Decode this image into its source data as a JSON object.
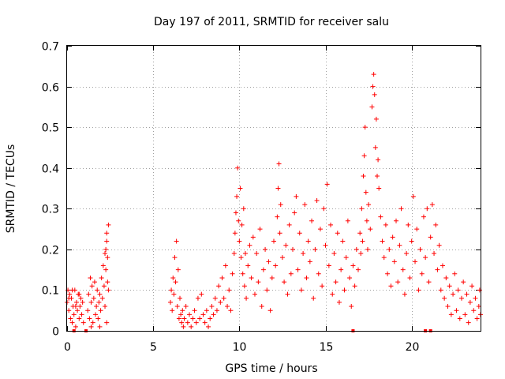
{
  "chart_data": {
    "type": "scatter",
    "title": "Day 197 of 2011, SRMTID for receiver salu",
    "xlabel": "GPS time / hours",
    "ylabel": "SRMTID / TECUs",
    "xlim": [
      0,
      24
    ],
    "ylim": [
      0,
      0.7
    ],
    "xticks": [
      0,
      5,
      10,
      15,
      20
    ],
    "xtick_labels": [
      "0",
      "5",
      "10",
      "15",
      "20"
    ],
    "yticks": [
      0,
      0.1,
      0.2,
      0.3,
      0.4,
      0.5,
      0.6,
      0.7
    ],
    "ytick_labels": [
      "0",
      "0.1",
      "0.2",
      "0.3",
      "0.4",
      "0.5",
      "0.6",
      "0.7"
    ],
    "grid": true,
    "marker": "plus",
    "marker_color": "#ff0000",
    "series": [
      {
        "name": "SRMTID",
        "points": [
          [
            0.0,
            0.07
          ],
          [
            0.05,
            0.1
          ],
          [
            0.1,
            0.05
          ],
          [
            0.15,
            0.09
          ],
          [
            0.2,
            0.03
          ],
          [
            0.25,
            0.08
          ],
          [
            0.3,
            0.02
          ],
          [
            0.35,
            0.06
          ],
          [
            0.4,
            0.04
          ],
          [
            0.45,
            0.1
          ],
          [
            0.5,
            0.01
          ],
          [
            0.55,
            0.07
          ],
          [
            0.6,
            0.05
          ],
          [
            0.65,
            0.09
          ],
          [
            0.7,
            0.03
          ],
          [
            0.75,
            0.06
          ],
          [
            0.8,
            0.08
          ],
          [
            0.85,
            0.04
          ],
          [
            0.9,
            0.07
          ],
          [
            0.95,
            0.02
          ],
          [
            0.1,
            0.08
          ],
          [
            0.3,
            0.1
          ],
          [
            0.5,
            0.06
          ],
          [
            0.7,
            0.09
          ],
          [
            1.2,
            0.05
          ],
          [
            1.25,
            0.09
          ],
          [
            1.3,
            0.03
          ],
          [
            1.35,
            0.13
          ],
          [
            1.4,
            0.07
          ],
          [
            1.45,
            0.11
          ],
          [
            1.5,
            0.02
          ],
          [
            1.55,
            0.08
          ],
          [
            1.6,
            0.12
          ],
          [
            1.65,
            0.04
          ],
          [
            1.7,
            0.06
          ],
          [
            1.75,
            0.1
          ],
          [
            1.8,
            0.03
          ],
          [
            1.85,
            0.07
          ],
          [
            1.9,
            0.09
          ],
          [
            1.95,
            0.05
          ],
          [
            2.0,
            0.13
          ],
          [
            2.05,
            0.08
          ],
          [
            2.1,
            0.16
          ],
          [
            2.15,
            0.11
          ],
          [
            2.2,
            0.19
          ],
          [
            2.25,
            0.15
          ],
          [
            2.3,
            0.22
          ],
          [
            2.35,
            0.18
          ],
          [
            2.4,
            0.26
          ],
          [
            2.3,
            0.24
          ],
          [
            2.25,
            0.2
          ],
          [
            2.35,
            0.12
          ],
          [
            2.4,
            0.1
          ],
          [
            2.2,
            0.06
          ],
          [
            1.4,
            0.01
          ],
          [
            1.9,
            0.01
          ],
          [
            2.3,
            0.02
          ],
          [
            6.0,
            0.07
          ],
          [
            6.05,
            0.1
          ],
          [
            6.1,
            0.05
          ],
          [
            6.15,
            0.13
          ],
          [
            6.2,
            0.09
          ],
          [
            6.25,
            0.18
          ],
          [
            6.3,
            0.12
          ],
          [
            6.35,
            0.22
          ],
          [
            6.4,
            0.06
          ],
          [
            6.45,
            0.15
          ],
          [
            6.5,
            0.03
          ],
          [
            6.55,
            0.08
          ],
          [
            6.6,
            0.04
          ],
          [
            6.65,
            0.02
          ],
          [
            6.7,
            0.05
          ],
          [
            6.75,
            0.01
          ],
          [
            6.8,
            0.03
          ],
          [
            6.9,
            0.06
          ],
          [
            7.0,
            0.02
          ],
          [
            7.1,
            0.04
          ],
          [
            7.2,
            0.01
          ],
          [
            7.3,
            0.03
          ],
          [
            7.4,
            0.05
          ],
          [
            7.5,
            0.02
          ],
          [
            7.6,
            0.08
          ],
          [
            7.7,
            0.03
          ],
          [
            7.8,
            0.09
          ],
          [
            7.9,
            0.04
          ],
          [
            8.0,
            0.02
          ],
          [
            8.1,
            0.05
          ],
          [
            8.2,
            0.01
          ],
          [
            8.3,
            0.03
          ],
          [
            8.4,
            0.06
          ],
          [
            8.5,
            0.04
          ],
          [
            8.6,
            0.08
          ],
          [
            8.7,
            0.05
          ],
          [
            8.8,
            0.11
          ],
          [
            8.9,
            0.07
          ],
          [
            9.0,
            0.13
          ],
          [
            9.1,
            0.08
          ],
          [
            9.2,
            0.16
          ],
          [
            9.3,
            0.06
          ],
          [
            9.4,
            0.1
          ],
          [
            9.5,
            0.05
          ],
          [
            9.6,
            0.14
          ],
          [
            9.7,
            0.19
          ],
          [
            9.75,
            0.24
          ],
          [
            9.8,
            0.29
          ],
          [
            9.85,
            0.33
          ],
          [
            9.9,
            0.4
          ],
          [
            9.95,
            0.27
          ],
          [
            10.0,
            0.22
          ],
          [
            10.05,
            0.35
          ],
          [
            10.1,
            0.18
          ],
          [
            10.15,
            0.26
          ],
          [
            10.2,
            0.14
          ],
          [
            10.25,
            0.3
          ],
          [
            10.3,
            0.11
          ],
          [
            10.35,
            0.19
          ],
          [
            10.4,
            0.08
          ],
          [
            10.5,
            0.16
          ],
          [
            10.6,
            0.21
          ],
          [
            10.7,
            0.13
          ],
          [
            10.8,
            0.23
          ],
          [
            10.9,
            0.09
          ],
          [
            11.0,
            0.19
          ],
          [
            11.1,
            0.12
          ],
          [
            11.2,
            0.25
          ],
          [
            11.3,
            0.06
          ],
          [
            11.4,
            0.15
          ],
          [
            11.5,
            0.2
          ],
          [
            11.6,
            0.1
          ],
          [
            11.7,
            0.17
          ],
          [
            11.8,
            0.05
          ],
          [
            11.9,
            0.13
          ],
          [
            12.0,
            0.22
          ],
          [
            12.1,
            0.16
          ],
          [
            12.2,
            0.28
          ],
          [
            12.25,
            0.35
          ],
          [
            12.3,
            0.41
          ],
          [
            12.35,
            0.24
          ],
          [
            12.4,
            0.31
          ],
          [
            12.5,
            0.18
          ],
          [
            12.6,
            0.12
          ],
          [
            12.7,
            0.21
          ],
          [
            12.8,
            0.09
          ],
          [
            12.9,
            0.26
          ],
          [
            13.0,
            0.14
          ],
          [
            13.1,
            0.2
          ],
          [
            13.2,
            0.29
          ],
          [
            13.3,
            0.33
          ],
          [
            13.4,
            0.15
          ],
          [
            13.5,
            0.24
          ],
          [
            13.6,
            0.1
          ],
          [
            13.7,
            0.19
          ],
          [
            13.8,
            0.31
          ],
          [
            13.9,
            0.13
          ],
          [
            14.0,
            0.22
          ],
          [
            14.1,
            0.17
          ],
          [
            14.2,
            0.27
          ],
          [
            14.3,
            0.08
          ],
          [
            14.4,
            0.2
          ],
          [
            14.5,
            0.32
          ],
          [
            14.6,
            0.14
          ],
          [
            14.7,
            0.25
          ],
          [
            14.8,
            0.11
          ],
          [
            14.9,
            0.3
          ],
          [
            15.0,
            0.21
          ],
          [
            15.1,
            0.36
          ],
          [
            15.2,
            0.16
          ],
          [
            15.3,
            0.26
          ],
          [
            15.4,
            0.09
          ],
          [
            15.5,
            0.19
          ],
          [
            15.6,
            0.12
          ],
          [
            15.7,
            0.24
          ],
          [
            15.8,
            0.07
          ],
          [
            15.9,
            0.15
          ],
          [
            16.0,
            0.22
          ],
          [
            16.1,
            0.1
          ],
          [
            16.2,
            0.18
          ],
          [
            16.3,
            0.27
          ],
          [
            16.4,
            0.13
          ],
          [
            16.5,
            0.06
          ],
          [
            16.6,
            0.16
          ],
          [
            16.7,
            0.11
          ],
          [
            16.8,
            0.2
          ],
          [
            16.9,
            0.15
          ],
          [
            17.0,
            0.24
          ],
          [
            17.05,
            0.19
          ],
          [
            17.1,
            0.3
          ],
          [
            17.15,
            0.22
          ],
          [
            17.2,
            0.38
          ],
          [
            17.25,
            0.43
          ],
          [
            17.3,
            0.5
          ],
          [
            17.35,
            0.34
          ],
          [
            17.4,
            0.27
          ],
          [
            17.45,
            0.2
          ],
          [
            17.5,
            0.31
          ],
          [
            17.6,
            0.25
          ],
          [
            17.7,
            0.55
          ],
          [
            17.75,
            0.6
          ],
          [
            17.8,
            0.63
          ],
          [
            17.85,
            0.58
          ],
          [
            17.9,
            0.45
          ],
          [
            17.95,
            0.52
          ],
          [
            18.0,
            0.38
          ],
          [
            18.05,
            0.42
          ],
          [
            18.1,
            0.35
          ],
          [
            18.2,
            0.28
          ],
          [
            18.3,
            0.22
          ],
          [
            18.4,
            0.18
          ],
          [
            18.5,
            0.26
          ],
          [
            18.6,
            0.14
          ],
          [
            18.7,
            0.2
          ],
          [
            18.8,
            0.11
          ],
          [
            18.9,
            0.23
          ],
          [
            19.0,
            0.17
          ],
          [
            19.1,
            0.27
          ],
          [
            19.2,
            0.12
          ],
          [
            19.3,
            0.21
          ],
          [
            19.4,
            0.3
          ],
          [
            19.5,
            0.15
          ],
          [
            19.6,
            0.09
          ],
          [
            19.7,
            0.19
          ],
          [
            19.8,
            0.26
          ],
          [
            19.9,
            0.13
          ],
          [
            20.0,
            0.22
          ],
          [
            20.1,
            0.33
          ],
          [
            20.2,
            0.17
          ],
          [
            20.3,
            0.25
          ],
          [
            20.4,
            0.1
          ],
          [
            20.5,
            0.2
          ],
          [
            20.6,
            0.14
          ],
          [
            20.7,
            0.28
          ],
          [
            20.8,
            0.18
          ],
          [
            20.9,
            0.3
          ],
          [
            21.0,
            0.12
          ],
          [
            21.1,
            0.23
          ],
          [
            21.2,
            0.31
          ],
          [
            21.3,
            0.19
          ],
          [
            21.4,
            0.26
          ],
          [
            21.5,
            0.15
          ],
          [
            21.6,
            0.21
          ],
          [
            21.7,
            0.1
          ],
          [
            21.8,
            0.16
          ],
          [
            21.9,
            0.08
          ],
          [
            22.0,
            0.13
          ],
          [
            22.1,
            0.06
          ],
          [
            22.2,
            0.11
          ],
          [
            22.3,
            0.04
          ],
          [
            22.4,
            0.09
          ],
          [
            22.5,
            0.14
          ],
          [
            22.6,
            0.05
          ],
          [
            22.7,
            0.1
          ],
          [
            22.8,
            0.03
          ],
          [
            22.9,
            0.08
          ],
          [
            23.0,
            0.12
          ],
          [
            23.1,
            0.04
          ],
          [
            23.2,
            0.09
          ],
          [
            23.3,
            0.02
          ],
          [
            23.4,
            0.07
          ],
          [
            23.5,
            0.11
          ],
          [
            23.6,
            0.05
          ],
          [
            23.7,
            0.08
          ],
          [
            23.8,
            0.03
          ],
          [
            23.9,
            0.06
          ],
          [
            23.95,
            0.1
          ],
          [
            24.0,
            0.04
          ]
        ]
      }
    ],
    "zero_points_x": [
      0.4,
      1.1,
      16.6,
      20.8,
      21.1
    ]
  }
}
